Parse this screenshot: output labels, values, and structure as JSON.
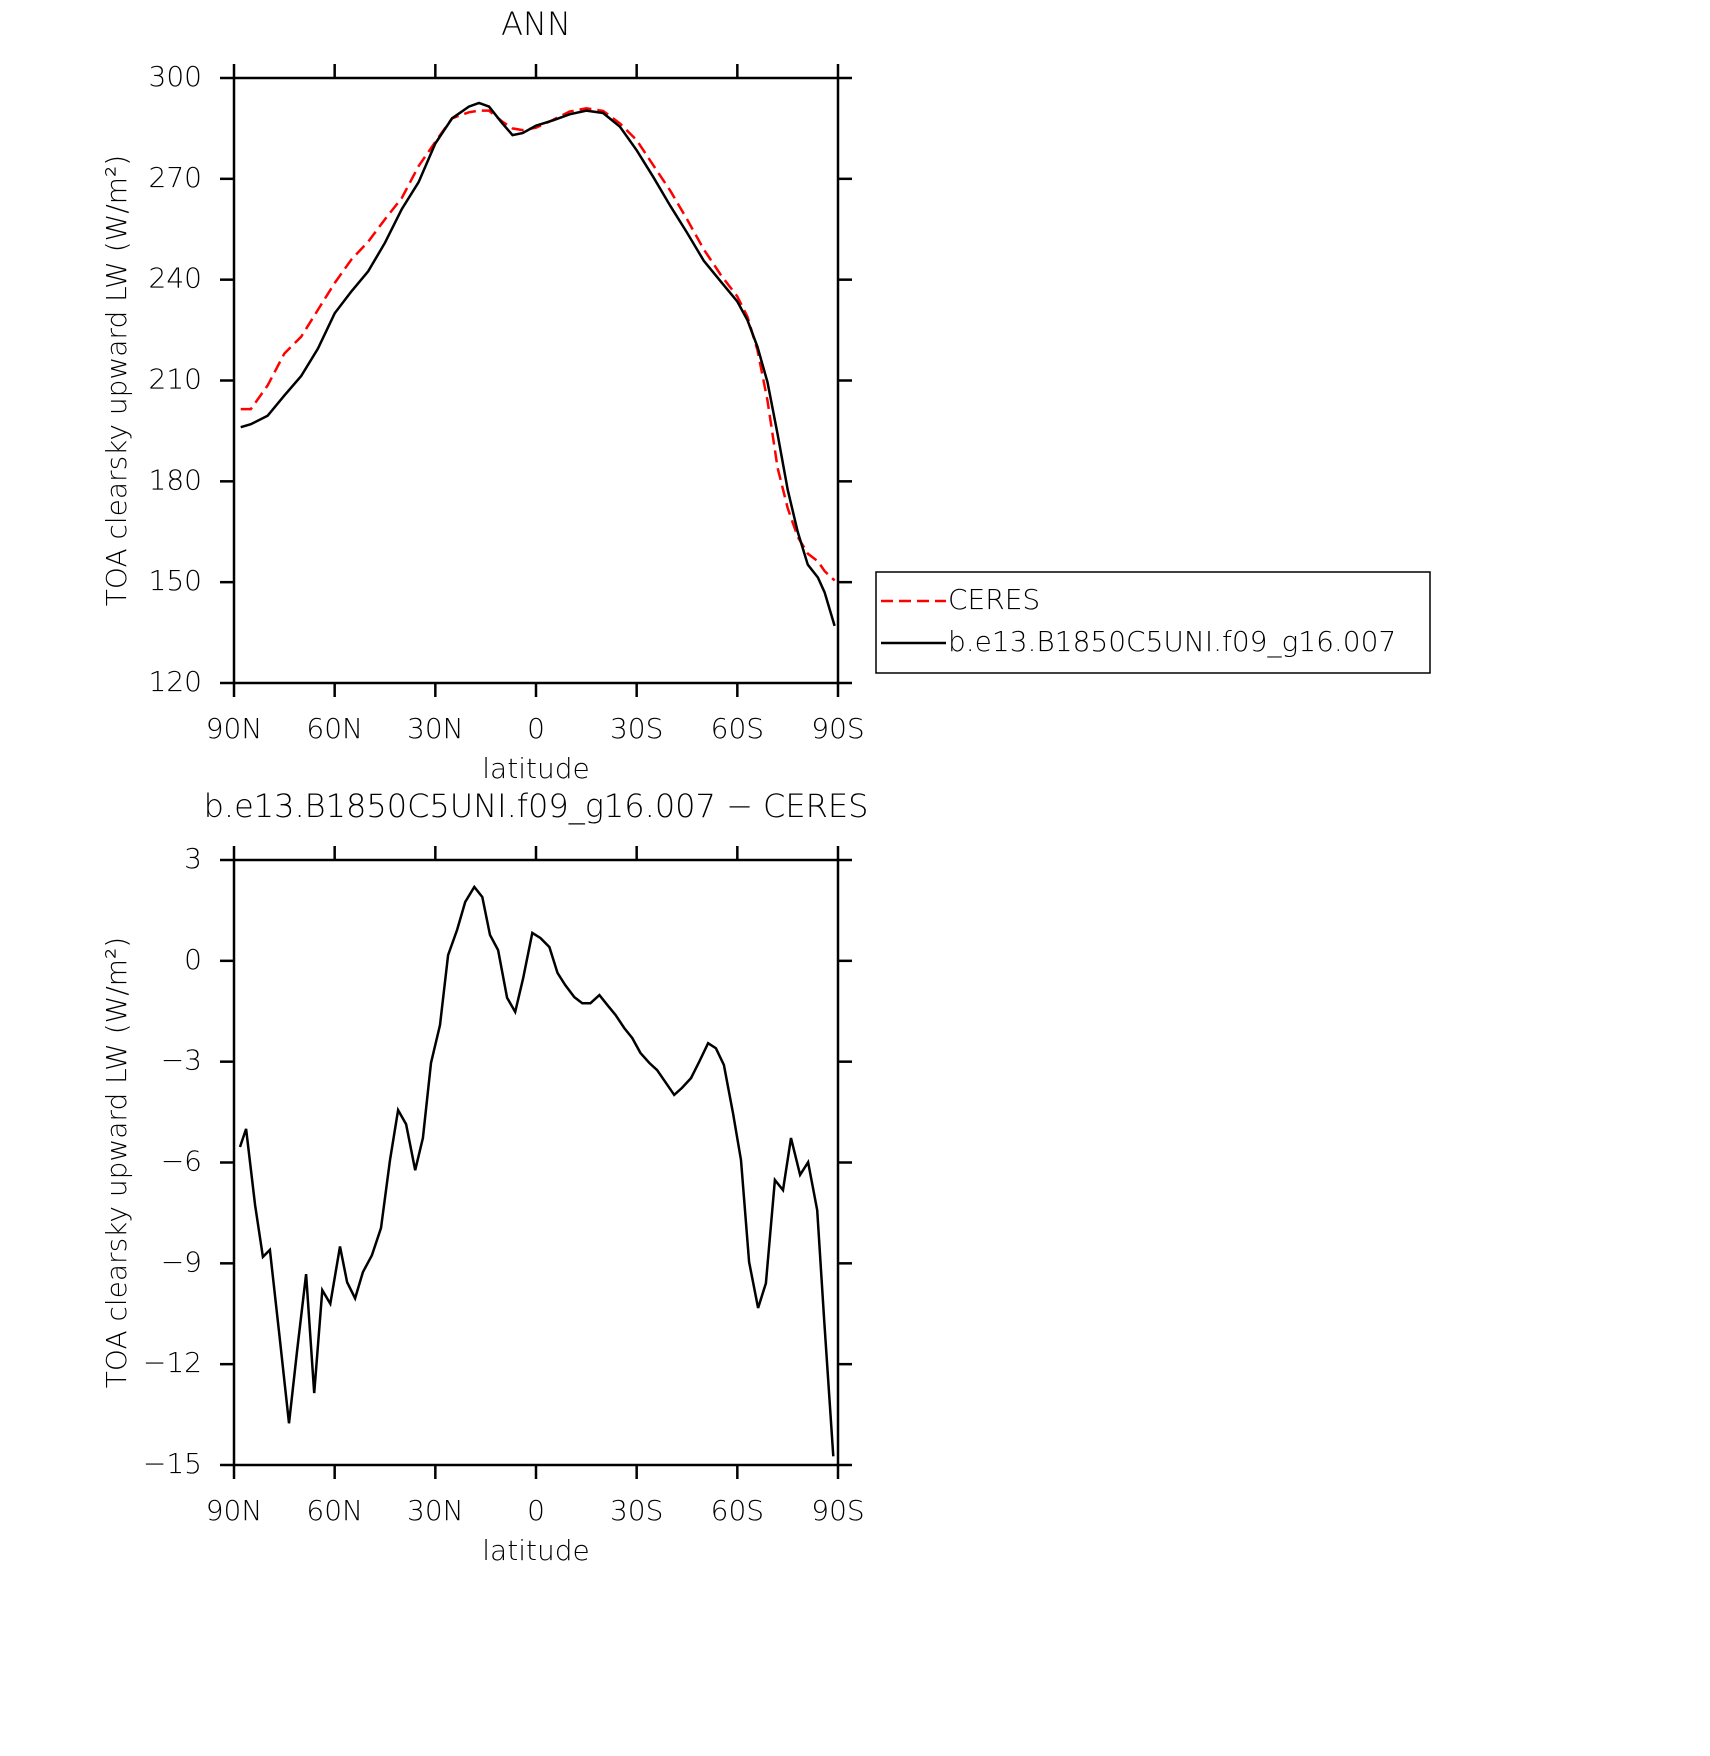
{
  "chart_data": [
    {
      "type": "line",
      "title": "ANN",
      "x_label": "latitude",
      "y_label": "TOA clearsky upward LW (W/m²)",
      "x": [
        88,
        85,
        80,
        75,
        70,
        65,
        60,
        55,
        50,
        45,
        40,
        35,
        30,
        25,
        20,
        17,
        14,
        10,
        7,
        4,
        0,
        -5,
        -10,
        -15,
        -20,
        -25,
        -30,
        -35,
        -40,
        -45,
        -50,
        -55,
        -60,
        -63,
        -66,
        -69,
        -72,
        -75,
        -78,
        -81,
        -84,
        -86,
        -89
      ],
      "series": [
        {
          "name": "CERES",
          "color": "#ff0000",
          "linestyle": "dashed",
          "values": [
            201.5,
            201.5,
            208.5,
            218,
            223,
            231,
            239,
            246,
            251.3,
            258,
            264.3,
            273.8,
            281,
            288,
            289.8,
            290.3,
            290.3,
            287,
            285,
            284.5,
            285.2,
            287.5,
            290,
            291,
            290.2,
            286.5,
            281.5,
            274,
            266.5,
            258,
            249,
            241.5,
            235,
            229,
            219,
            204,
            184,
            172,
            163.5,
            158.5,
            156.2,
            153.3,
            150.5
          ]
        },
        {
          "name": "b.e13.B1850C5UNI.f09_g16.007",
          "color": "#000000",
          "linestyle": "solid",
          "values": [
            196.1,
            197,
            199.5,
            205.5,
            211.3,
            219.5,
            230,
            236.5,
            242.5,
            251,
            261,
            269,
            280.5,
            288,
            291.5,
            292.6,
            291.5,
            286.5,
            283,
            283.6,
            285.8,
            287.4,
            289.2,
            290.3,
            289.6,
            285.5,
            278.5,
            270.5,
            262,
            254,
            245.6,
            239.5,
            233.5,
            228,
            220,
            209.5,
            194,
            177.5,
            165,
            155.2,
            151.4,
            147,
            137
          ]
        }
      ],
      "xlim": [
        90,
        -90
      ],
      "xticks": [
        {
          "value": 90,
          "label": "90N"
        },
        {
          "value": 60,
          "label": "60N"
        },
        {
          "value": 30,
          "label": "30N"
        },
        0,
        {
          "value": -30,
          "label": "30S"
        },
        {
          "value": -60,
          "label": "60S"
        },
        {
          "value": -90,
          "label": "90S"
        }
      ],
      "ylim": [
        120,
        300
      ],
      "yticks": [
        120,
        150,
        180,
        210,
        240,
        270,
        300
      ],
      "legend": "right"
    },
    {
      "type": "line",
      "title": "b.e13.B1850C5UNI.f09_g16.007 − CERES",
      "x_label": "latitude",
      "y_label": "TOA clearsky upward LW (W/m²)",
      "x": [
        88.2,
        86.4,
        83.7,
        81.4,
        79.3,
        76.3,
        73.6,
        71.2,
        68.5,
        66.1,
        63.7,
        61.3,
        58.4,
        56.3,
        53.9,
        51.6,
        48.9,
        46.2,
        43.5,
        41.1,
        38.7,
        36.0,
        33.7,
        31.3,
        28.6,
        26.2,
        23.5,
        21.1,
        18.4,
        16.0,
        13.7,
        11.3,
        8.6,
        6.2,
        3.8,
        1.1,
        -1.3,
        -4.0,
        -6.4,
        -8.7,
        -11.4,
        -13.8,
        -16.2,
        -18.9,
        -21.3,
        -23.7,
        -26.3,
        -28.7,
        -31.1,
        -33.8,
        -36.1,
        -38.5,
        -41.2,
        -43.5,
        -46.2,
        -48.6,
        -51.3,
        -53.6,
        -56.0,
        -58.7,
        -61.1,
        -63.5,
        -66.2,
        -68.5,
        -71.2,
        -73.6,
        -76.0,
        -78.7,
        -81.1,
        -83.8,
        -85.9,
        -88.6
      ],
      "series": [
        {
          "name": "b.e13.B1850C5UNI.f09_g16.007 − CERES",
          "color": "#000000",
          "linestyle": "solid",
          "values": [
            -5.54,
            -5.0,
            -7.27,
            -8.81,
            -8.6,
            -11.3,
            -13.76,
            -11.6,
            -9.32,
            -12.86,
            -9.8,
            -10.2,
            -8.5,
            -9.56,
            -10.04,
            -9.26,
            -8.76,
            -7.95,
            -5.93,
            -4.44,
            -4.86,
            -6.23,
            -5.27,
            -3.04,
            -1.91,
            0.17,
            0.92,
            1.75,
            2.2,
            1.9,
            0.77,
            0.32,
            -1.1,
            -1.52,
            -0.51,
            0.83,
            0.68,
            0.41,
            -0.36,
            -0.72,
            -1.08,
            -1.26,
            -1.26,
            -1.02,
            -1.32,
            -1.61,
            -2.0,
            -2.3,
            -2.74,
            -3.04,
            -3.25,
            -3.6,
            -3.99,
            -3.78,
            -3.49,
            -3.01,
            -2.45,
            -2.6,
            -3.1,
            -4.53,
            -5.93,
            -8.96,
            -10.33,
            -9.59,
            -6.52,
            -6.82,
            -5.27,
            -6.37,
            -5.99,
            -7.42,
            -10.7,
            -14.74
          ]
        }
      ],
      "xlim": [
        90,
        -90
      ],
      "xticks": [
        {
          "value": 90,
          "label": "90N"
        },
        {
          "value": 60,
          "label": "60N"
        },
        {
          "value": 30,
          "label": "30N"
        },
        0,
        {
          "value": -30,
          "label": "30S"
        },
        {
          "value": -60,
          "label": "60S"
        },
        {
          "value": -90,
          "label": "90S"
        }
      ],
      "ylim": [
        -15,
        3
      ],
      "yticks": [
        {
          "value": -15,
          "label": "−15"
        },
        {
          "value": -12,
          "label": "−12"
        },
        {
          "value": -9,
          "label": "−9"
        },
        {
          "value": -6,
          "label": "−6"
        },
        {
          "value": -3,
          "label": "−3"
        },
        0,
        3
      ]
    }
  ]
}
